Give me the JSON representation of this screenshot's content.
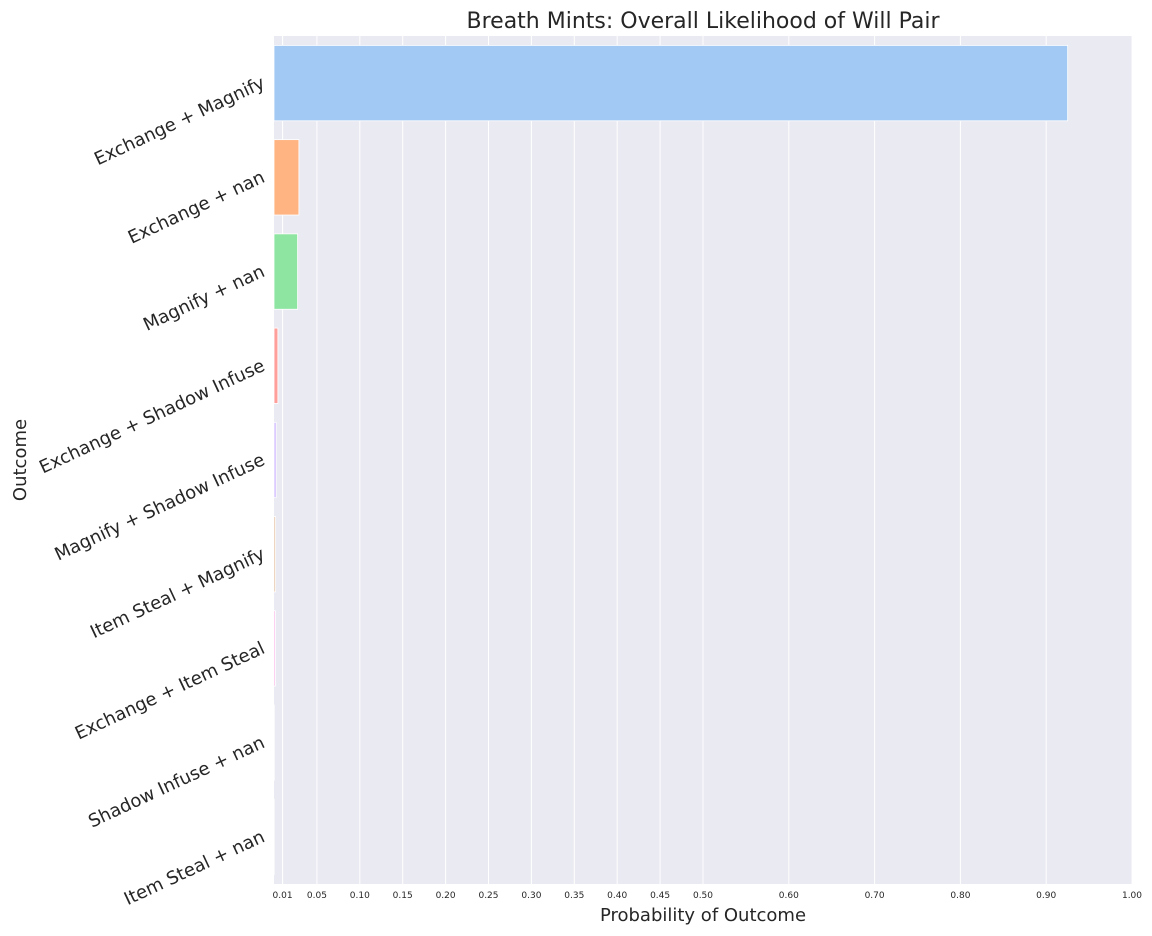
{
  "chart_data": {
    "type": "bar",
    "orientation": "horizontal",
    "title": "Breath Mints: Overall Likelihood of Will Pair",
    "xlabel": "Probability of Outcome",
    "ylabel": "Outcome",
    "categories": [
      "Exchange + Magnify",
      "Exchange + nan",
      "Magnify + nan",
      "Exchange + Shadow Infuse",
      "Magnify + Shadow Infuse",
      "Item Steal + Magnify",
      "Exchange + Item Steal",
      "Shadow Infuse + nan",
      "Item Steal + nan"
    ],
    "values": [
      0.925,
      0.029,
      0.0275,
      0.0045,
      0.0025,
      0.0018,
      0.0016,
      0.0003,
      0.0002
    ],
    "colors": [
      "#a1c9f4",
      "#ffb482",
      "#8de5a1",
      "#ff9f9b",
      "#d0bbff",
      "#debb9b",
      "#fab0e4",
      "#cfcfcf",
      "#fffea3"
    ],
    "xticks": [
      0.01,
      0.05,
      0.1,
      0.15,
      0.2,
      0.25,
      0.3,
      0.35,
      0.4,
      0.45,
      0.5,
      0.6,
      0.7,
      0.8,
      0.9,
      1.0
    ],
    "xtick_labels": [
      "0.01",
      "0.05",
      "0.10",
      "0.15",
      "0.20",
      "0.25",
      "0.30",
      "0.35",
      "0.40",
      "0.45",
      "0.50",
      "0.60",
      "0.70",
      "0.80",
      "0.90",
      "1.00"
    ],
    "xlim": [
      0,
      1.0
    ],
    "grid": true,
    "background": "#eaeaf2",
    "grid_color": "#ffffff"
  }
}
